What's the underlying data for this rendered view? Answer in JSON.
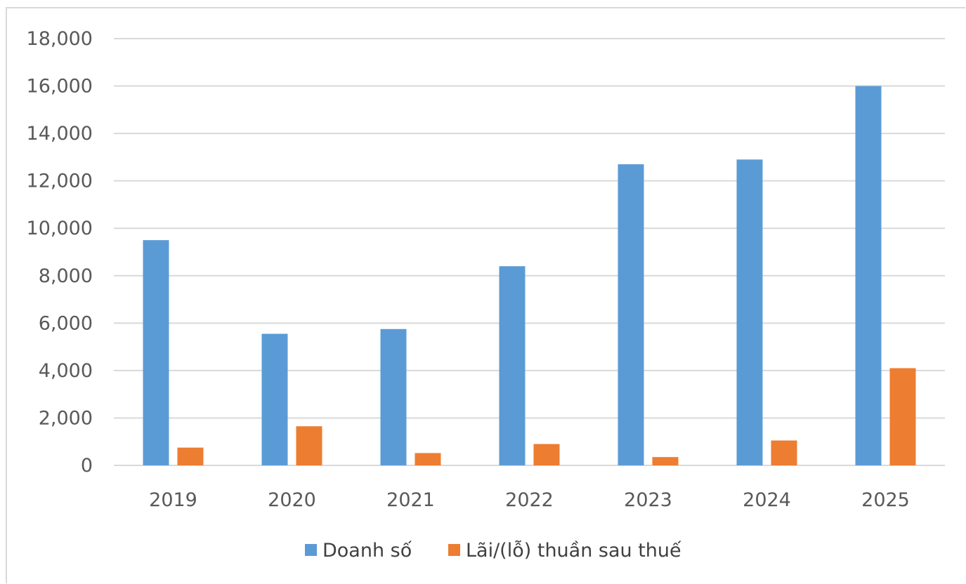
{
  "chart_data": {
    "type": "bar",
    "categories": [
      "2019",
      "2020",
      "2021",
      "2022",
      "2023",
      "2024",
      "2025"
    ],
    "series": [
      {
        "name": "Doanh số",
        "color": "#5b9bd5",
        "values": [
          9500,
          5550,
          5750,
          8400,
          12700,
          12900,
          16000
        ]
      },
      {
        "name": "Lãi/(lỗ) thuần sau thuế",
        "color": "#ed7d31",
        "values": [
          750,
          1650,
          520,
          900,
          350,
          1050,
          4100
        ]
      }
    ],
    "y_ticks": [
      "0",
      "2,000",
      "4,000",
      "6,000",
      "8,000",
      "10,000",
      "12,000",
      "14,000",
      "16,000",
      "18,000"
    ],
    "ylim": [
      0,
      18000
    ],
    "grid": true,
    "legend_position": "bottom",
    "title": "",
    "xlabel": "",
    "ylabel": ""
  }
}
